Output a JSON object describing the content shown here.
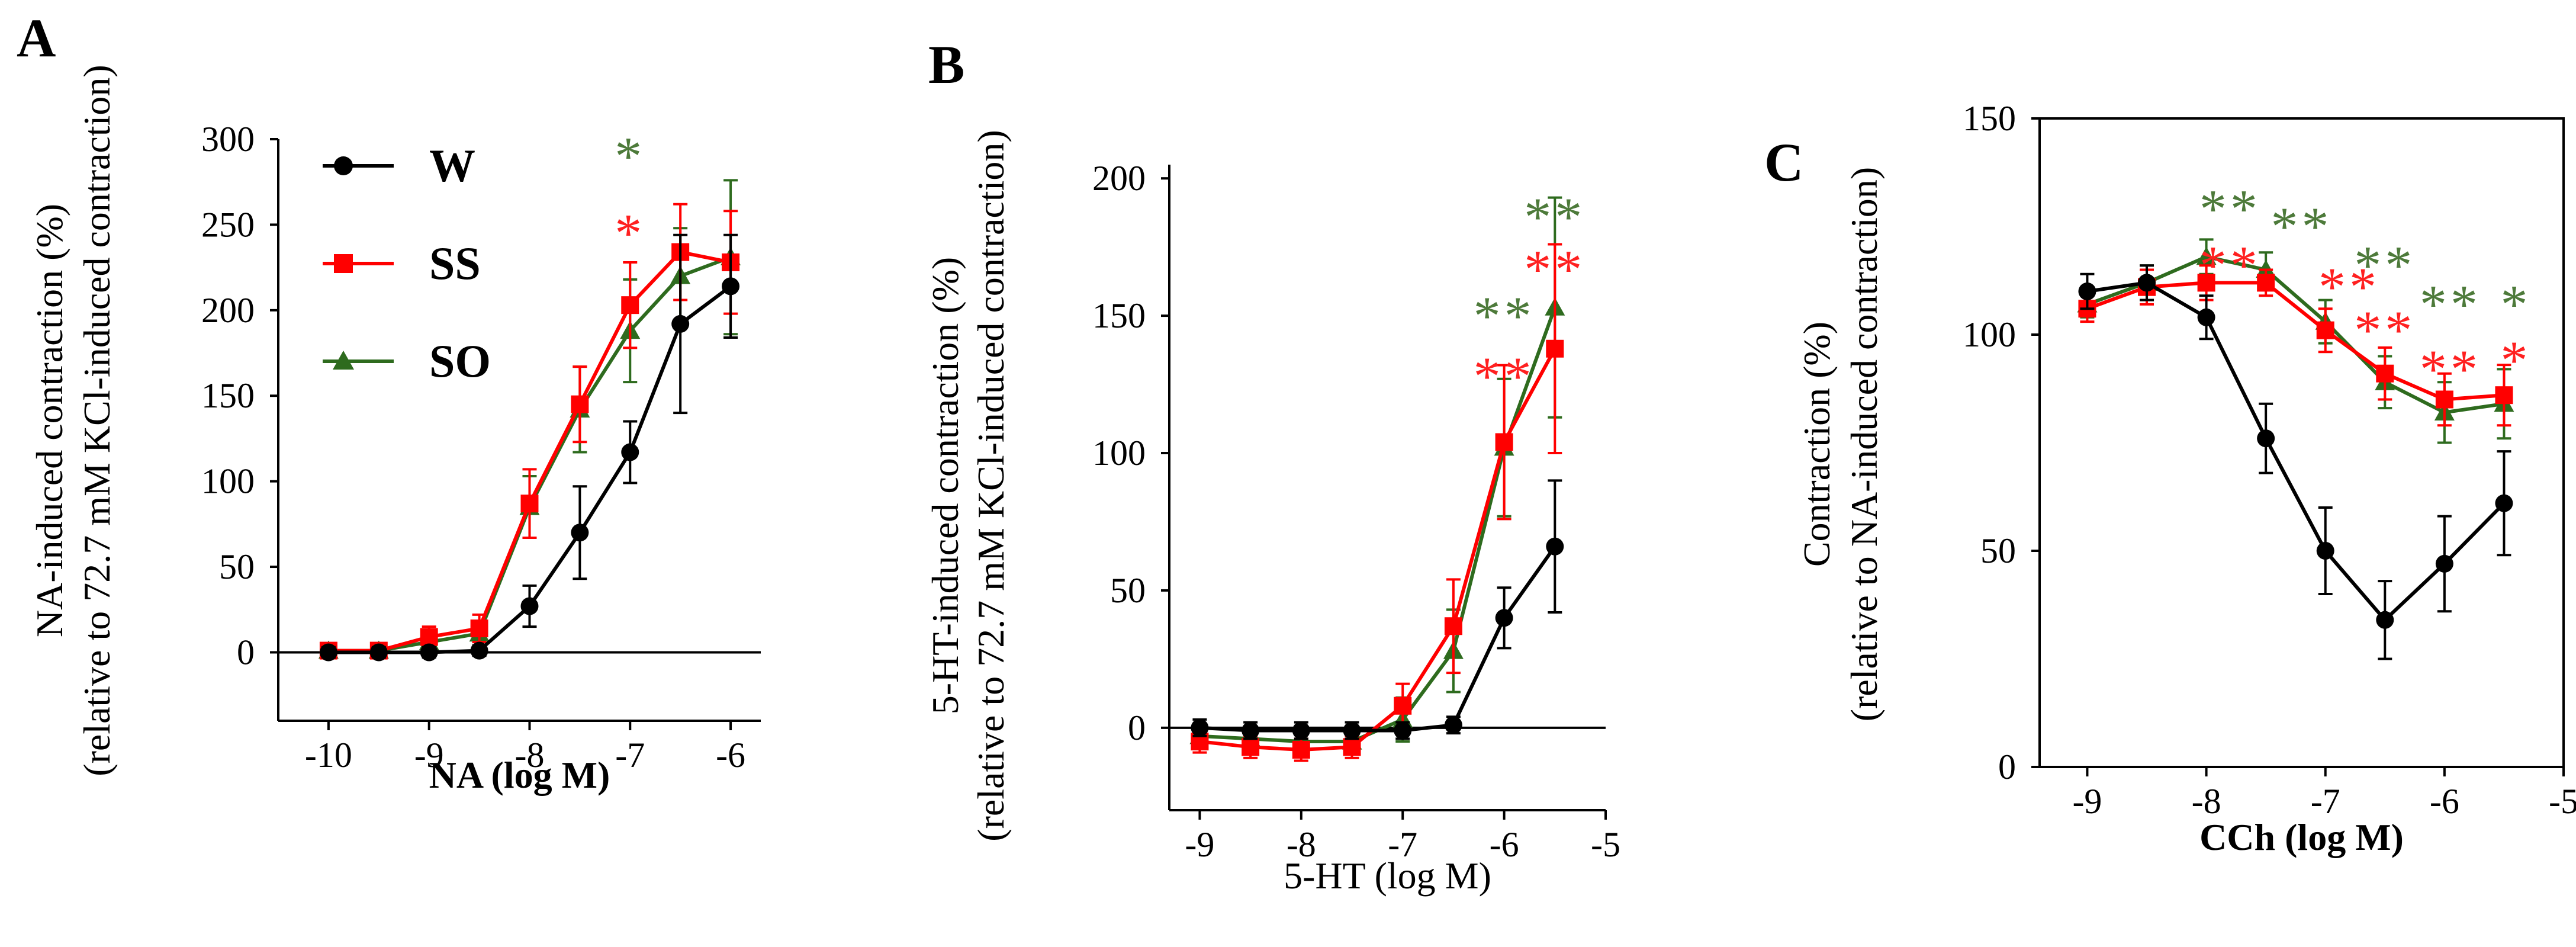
{
  "colors": {
    "W": "#000000",
    "SS": "#ff0000",
    "SO": "#2e6b1e",
    "sig_SS": "#ff2020",
    "sig_SO": "#4d7a3a"
  },
  "legend": [
    {
      "key": "W",
      "label": "W",
      "marker": "circle"
    },
    {
      "key": "SS",
      "label": "SS",
      "marker": "square"
    },
    {
      "key": "SO",
      "label": "SO",
      "marker": "triangle"
    }
  ],
  "chart_data": [
    {
      "panel": "A",
      "type": "line",
      "xlabel": "NA (log M)",
      "ylabel_lines": [
        "NA-induced contraction (%)",
        "(relative to 72.7 mM KCl-induced contraction)"
      ],
      "xlim": [
        -10.5,
        -5.7
      ],
      "ylim": [
        -40,
        300
      ],
      "xticks": [
        -10,
        -9,
        -8,
        -7,
        -6
      ],
      "xtick_labels": [
        "-10",
        "-9",
        "-8",
        "-7",
        "-6"
      ],
      "yticks": [
        0,
        50,
        100,
        150,
        200,
        250,
        300
      ],
      "ytick_labels": [
        "0",
        "50",
        "100",
        "150",
        "200",
        "250",
        "300"
      ],
      "x": [
        -10,
        -9.5,
        -9,
        -8.5,
        -8,
        -7.5,
        -7,
        -6.5,
        -6
      ],
      "series": [
        {
          "name": "W",
          "values": [
            0,
            0,
            0,
            1,
            27,
            70,
            117,
            192,
            214
          ],
          "errors": [
            3,
            3,
            3,
            3,
            12,
            27,
            18,
            52,
            30
          ]
        },
        {
          "name": "SS",
          "values": [
            1,
            1,
            9,
            14,
            87,
            145,
            203,
            234,
            228
          ],
          "errors": [
            4,
            4,
            6,
            8,
            20,
            22,
            25,
            28,
            30
          ]
        },
        {
          "name": "SO",
          "values": [
            1,
            1,
            6,
            11,
            85,
            142,
            188,
            220,
            231
          ],
          "errors": [
            4,
            4,
            5,
            7,
            18,
            25,
            30,
            28,
            45
          ]
        }
      ],
      "annotations": [
        {
          "x": -7,
          "y": 295,
          "text": "*",
          "series": "SO"
        },
        {
          "x": -7,
          "y": 250,
          "text": "*",
          "series": "SS"
        }
      ]
    },
    {
      "panel": "B",
      "type": "line",
      "xlabel": "5-HT (log M)",
      "ylabel_lines": [
        "5-HT-induced contraction (%)",
        "(relative to 72.7 mM KCl-induced contraction)"
      ],
      "xlim": [
        -9.3,
        -5
      ],
      "ylim": [
        -30,
        205
      ],
      "xticks": [
        -9,
        -8,
        -7,
        -6,
        -5
      ],
      "xtick_labels": [
        "-9",
        "-8",
        "-7",
        "-6",
        "-5"
      ],
      "yticks": [
        0,
        50,
        100,
        150,
        200
      ],
      "ytick_labels": [
        "0",
        "50",
        "100",
        "150",
        "200"
      ],
      "x": [
        -9,
        -8.5,
        -8,
        -7.5,
        -7,
        -6.5,
        -6,
        -5.5
      ],
      "series": [
        {
          "name": "W",
          "values": [
            0,
            -1,
            -1,
            -1,
            -1,
            1,
            40,
            66
          ],
          "errors": [
            3,
            3,
            3,
            3,
            3,
            3,
            11,
            24
          ]
        },
        {
          "name": "SS",
          "values": [
            -5,
            -7,
            -8,
            -7,
            8,
            37,
            104,
            138
          ],
          "errors": [
            4,
            4,
            4,
            4,
            8,
            17,
            28,
            38
          ]
        },
        {
          "name": "SO",
          "values": [
            -3,
            -4,
            -5,
            -5,
            3,
            28,
            102,
            153
          ],
          "errors": [
            4,
            4,
            4,
            4,
            8,
            15,
            25,
            40
          ]
        }
      ],
      "annotations": [
        {
          "x": -5.5,
          "y": 189,
          "text": "**",
          "series": "SO"
        },
        {
          "x": -5.5,
          "y": 170,
          "text": "**",
          "series": "SS"
        },
        {
          "x": -6,
          "y": 153,
          "text": "**",
          "series": "SO"
        },
        {
          "x": -6,
          "y": 131,
          "text": "**",
          "series": "SS"
        }
      ]
    },
    {
      "panel": "C",
      "type": "line",
      "xlabel": "CCh (log M)",
      "ylabel_lines": [
        "Contraction (%)",
        "(relative to NA-induced contraction)"
      ],
      "xlim": [
        -9.4,
        -5
      ],
      "ylim": [
        0,
        150
      ],
      "xticks": [
        -9,
        -8,
        -7,
        -6,
        -5
      ],
      "xtick_labels": [
        "-9",
        "-8",
        "-7",
        "-6",
        "-5"
      ],
      "yticks": [
        0,
        50,
        100,
        150
      ],
      "ytick_labels": [
        "0",
        "50",
        "100",
        "150"
      ],
      "x": [
        -9,
        -8.5,
        -8,
        -7.5,
        -7,
        -6.5,
        -6,
        -5.5
      ],
      "series": [
        {
          "name": "W",
          "values": [
            110,
            112,
            104,
            76,
            50,
            34,
            47,
            61
          ],
          "errors": [
            4,
            4,
            5,
            8,
            10,
            9,
            11,
            12
          ]
        },
        {
          "name": "SS",
          "values": [
            106,
            111,
            112,
            112,
            101,
            91,
            85,
            86
          ],
          "errors": [
            3,
            4,
            4,
            3,
            5,
            6,
            6,
            7
          ]
        },
        {
          "name": "SO",
          "values": [
            107,
            112,
            118,
            115,
            103,
            89,
            82,
            84
          ],
          "errors": [
            3,
            4,
            4,
            4,
            5,
            6,
            7,
            8
          ]
        }
      ],
      "annotations": [
        {
          "x": -7.8,
          "y": 131,
          "text": "**",
          "series": "SO"
        },
        {
          "x": -7.8,
          "y": 118,
          "text": "**",
          "series": "SS"
        },
        {
          "x": -7.2,
          "y": 127,
          "text": "**",
          "series": "SO"
        },
        {
          "x": -6.8,
          "y": 113,
          "text": "**",
          "series": "SS"
        },
        {
          "x": -6.5,
          "y": 118,
          "text": "**",
          "series": "SO"
        },
        {
          "x": -6.5,
          "y": 103,
          "text": "**",
          "series": "SS"
        },
        {
          "x": -5.95,
          "y": 109,
          "text": "**",
          "series": "SO"
        },
        {
          "x": -5.95,
          "y": 94,
          "text": "**",
          "series": "SS"
        },
        {
          "x": -5.4,
          "y": 109,
          "text": "*",
          "series": "SO"
        },
        {
          "x": -5.4,
          "y": 96,
          "text": "*",
          "series": "SS"
        }
      ]
    }
  ]
}
